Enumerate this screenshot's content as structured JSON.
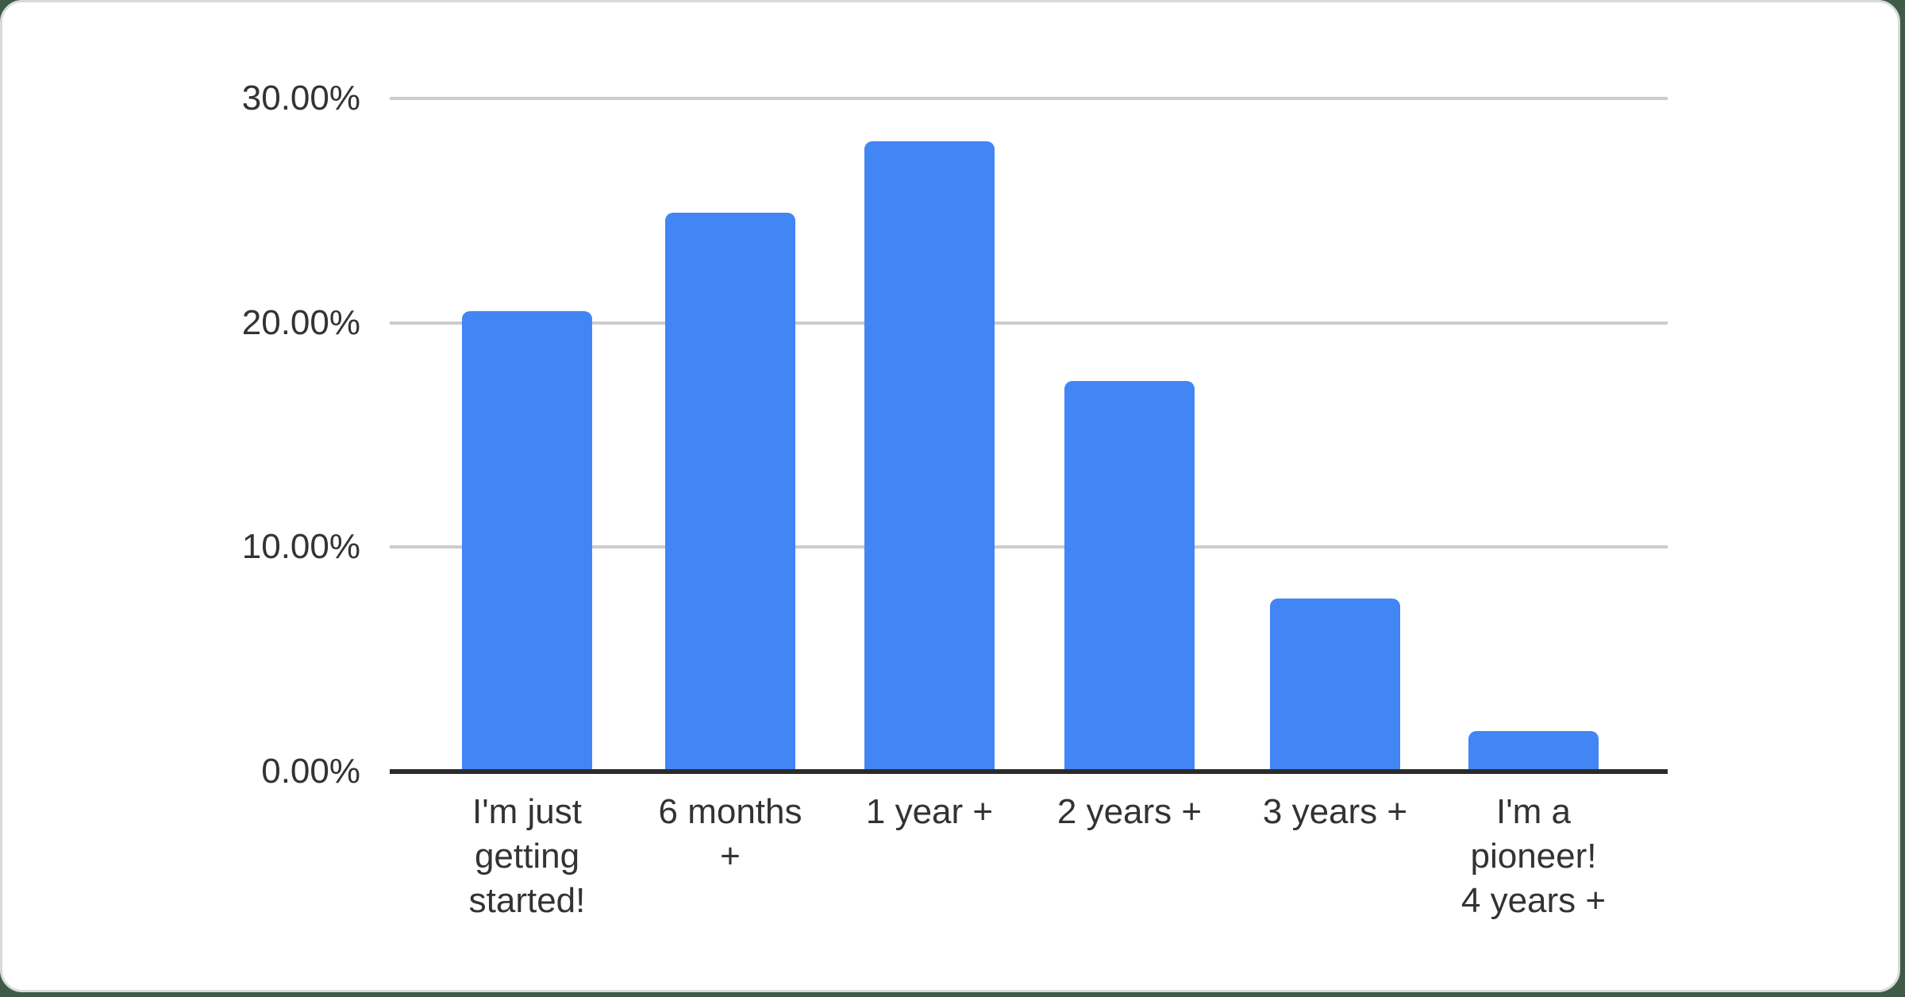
{
  "chart_data": {
    "type": "bar",
    "title": "",
    "xlabel": "",
    "ylabel": "",
    "categories": [
      "I'm just\ngetting\nstarted!",
      "6 months\n+",
      "1 year +",
      "2 years +",
      "3 years +",
      "I'm a\npioneer!\n4 years +"
    ],
    "values": [
      20.4,
      24.8,
      28.0,
      17.3,
      7.6,
      1.7
    ],
    "value_unit": "percent",
    "ylim": [
      0,
      30
    ],
    "yticks": [
      {
        "label": "30.00%",
        "value": 30
      },
      {
        "label": "20.00%",
        "value": 20
      },
      {
        "label": "10.00%",
        "value": 10
      },
      {
        "label": "0.00%",
        "value": 0
      }
    ],
    "grid": true,
    "legend_position": "none",
    "colors": {
      "bar": "#4285f4",
      "gridline": "#cccccc",
      "axis_line": "#2b2b2b",
      "tick_text": "#333333",
      "card_background": "#ffffff",
      "card_border": "#d8dcd9",
      "page_background": "#3f5b48"
    }
  }
}
